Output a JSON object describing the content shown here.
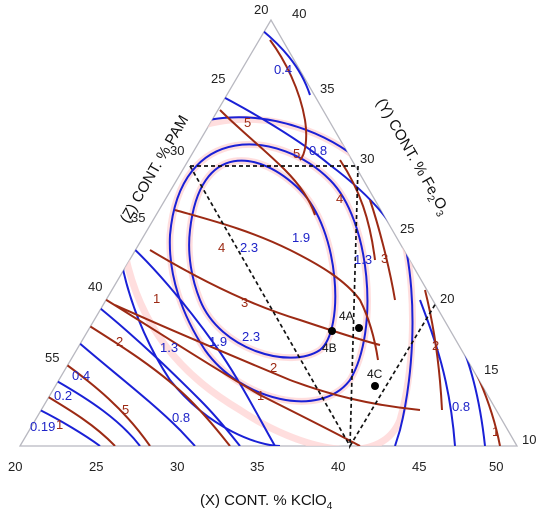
{
  "chart_data": {
    "type": "ternary-contour",
    "axes": {
      "x": {
        "label": "(X) CONT. % KClO",
        "subscript": "4",
        "ticks": [
          "20",
          "25",
          "30",
          "35",
          "40",
          "45",
          "50"
        ]
      },
      "y": {
        "label": "(Y) CONT. % Fe",
        "subscript_1": "2",
        "label_tail": "O",
        "subscript_2": "3",
        "ticks": [
          "40",
          "35",
          "30",
          "25",
          "20",
          "15",
          "10"
        ]
      },
      "z": {
        "label": "(Z) CONT. % PAM",
        "ticks": [
          "20",
          "25",
          "30",
          "35",
          "40",
          "55"
        ]
      }
    },
    "series": [
      {
        "color": "#1a20d6",
        "levels": [
          "0.4",
          "0.8",
          "1.3",
          "1.9",
          "2.3",
          "2.3",
          "1.9",
          "1.3",
          "0.8",
          "0.4",
          "0.2",
          "0.19",
          "0.8"
        ]
      },
      {
        "color": "#9c2a14",
        "levels": [
          "5",
          "5",
          "4",
          "3",
          "4",
          "3",
          "2",
          "1",
          "2",
          "1",
          "5",
          "1",
          "2",
          "1"
        ]
      }
    ],
    "points": [
      "4A",
      "4B",
      "4C"
    ]
  }
}
